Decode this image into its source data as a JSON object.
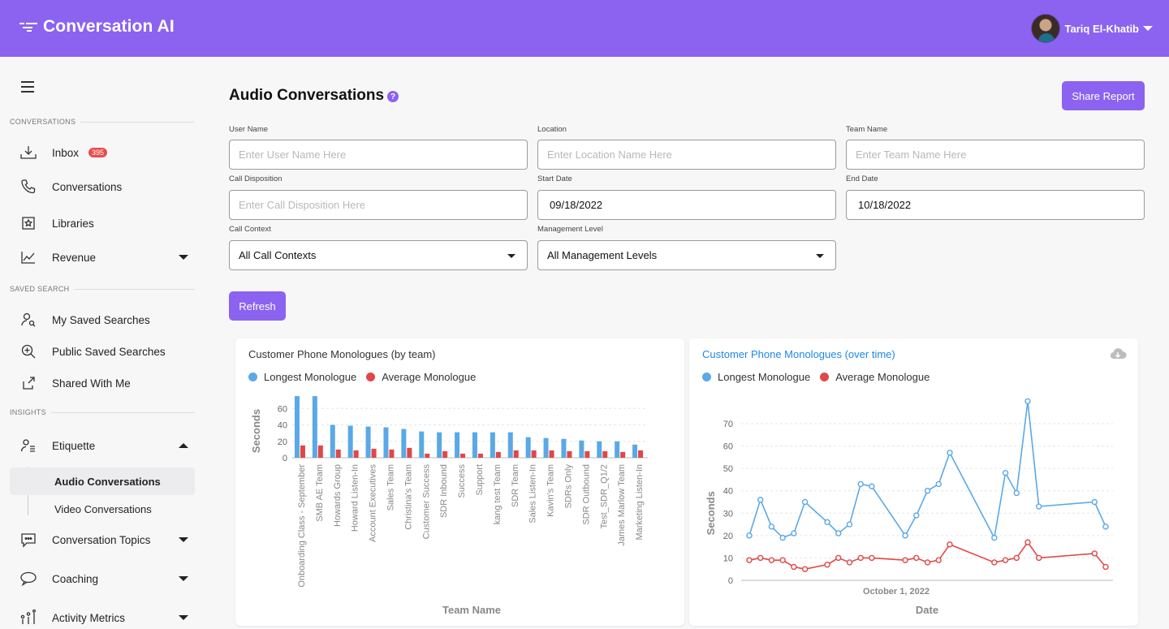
{
  "header": {
    "app_name": "Conversation AI",
    "user_name": "Tariq El-Khatib",
    "brand_color": "#8b63f0"
  },
  "sidebar": {
    "sections": {
      "conversations": "CONVERSATIONS",
      "saved_search": "SAVED SEARCH",
      "insights": "INSIGHTS"
    },
    "items": {
      "inbox": {
        "label": "Inbox",
        "badge": "395",
        "icon": "inbox-download-icon"
      },
      "conversations": {
        "label": "Conversations",
        "icon": "phone-icon"
      },
      "libraries": {
        "label": "Libraries",
        "icon": "library-icon"
      },
      "revenue": {
        "label": "Revenue",
        "icon": "line-chart-icon"
      },
      "my_saved": {
        "label": "My Saved Searches",
        "icon": "user-search-icon"
      },
      "public_saved": {
        "label": "Public Saved Searches",
        "icon": "zoom-in-icon"
      },
      "shared": {
        "label": "Shared With Me",
        "icon": "share-icon"
      },
      "etiquette": {
        "label": "Etiquette",
        "icon": "person-list-icon"
      },
      "audio": {
        "label": "Audio Conversations"
      },
      "video": {
        "label": "Video Conversations"
      },
      "topics": {
        "label": "Conversation Topics",
        "icon": "chat-bubble-icon"
      },
      "coaching": {
        "label": "Coaching",
        "icon": "speech-bubble-icon"
      },
      "activity": {
        "label": "Activity Metrics",
        "icon": "sliders-icon"
      }
    }
  },
  "main": {
    "title": "Audio Conversations",
    "share_button": "Share Report",
    "refresh_button": "Refresh",
    "filters": {
      "user_name": {
        "label": "User Name",
        "placeholder": "Enter User Name Here"
      },
      "location": {
        "label": "Location",
        "placeholder": "Enter Location Name Here"
      },
      "team_name": {
        "label": "Team Name",
        "placeholder": "Enter Team Name Here"
      },
      "call_disposition": {
        "label": "Call Disposition",
        "placeholder": "Enter Call Disposition Here"
      },
      "start_date": {
        "label": "Start Date",
        "value": "09/18/2022"
      },
      "end_date": {
        "label": "End Date",
        "value": "10/18/2022"
      },
      "call_context": {
        "label": "Call Context",
        "value": "All Call Contexts"
      },
      "management_level": {
        "label": "Management Level",
        "value": "All Management Levels"
      }
    }
  },
  "chart_data": [
    {
      "type": "bar",
      "title": "Customer Phone Monologues (by team)",
      "xlabel": "Team Name",
      "ylabel": "Seconds",
      "ylim": [
        0,
        80
      ],
      "yticks": [
        0,
        20,
        40,
        60
      ],
      "legend_position": "top-left",
      "categories": [
        "Onboarding Class - September",
        "SMB AE Team",
        "Howards Group",
        "Howard Listen-In",
        "Account Executives",
        "Sales Team",
        "Christina's Team",
        "Customer Success",
        "SDR Inbound",
        "Success",
        "Support",
        "kang test Team",
        "SDR Team",
        "Sales Listen-In",
        "Kavin's Team",
        "SDRs Only",
        "SDR Outbound",
        "Test_SDR_Q1/2",
        "James Marlow Team",
        "Marketing Listen-In"
      ],
      "series": [
        {
          "name": "Longest Monologue",
          "color": "#5aa9e6",
          "values": [
            75,
            75,
            40,
            39,
            38,
            37,
            35,
            32,
            31,
            31,
            31,
            31,
            31,
            25,
            24,
            23,
            21,
            20,
            20,
            16
          ]
        },
        {
          "name": "Average Monologue",
          "color": "#e04848",
          "values": [
            15,
            15,
            10,
            9,
            11,
            10,
            12,
            5,
            8,
            5,
            5,
            7,
            9,
            9,
            9,
            8,
            8,
            8,
            7,
            9
          ]
        }
      ]
    },
    {
      "type": "line",
      "title": "Customer Phone Monologues (over time)",
      "xlabel": "Date",
      "ylabel": "Seconds",
      "ylim": [
        0,
        80
      ],
      "yticks": [
        0,
        10,
        20,
        30,
        40,
        50,
        60,
        70
      ],
      "x_tick_label": "October 1, 2022",
      "legend_position": "top-left",
      "x": [
        0,
        1,
        2,
        3,
        4,
        5,
        7,
        8,
        9,
        10,
        11,
        14,
        15,
        16,
        17,
        18,
        22,
        23,
        24,
        25,
        26,
        31,
        32
      ],
      "series": [
        {
          "name": "Longest Monologue",
          "color": "#5aa9e6",
          "values": [
            20,
            36,
            24,
            19,
            21,
            35,
            26,
            21,
            25,
            43,
            42,
            20,
            29,
            40,
            43,
            57,
            19,
            48,
            39,
            80,
            33,
            35,
            24
          ]
        },
        {
          "name": "Average Monologue",
          "color": "#e04848",
          "values": [
            9,
            10,
            9,
            9,
            6,
            5,
            7,
            10,
            8,
            10,
            10,
            9,
            10,
            8,
            9,
            16,
            8,
            9,
            10,
            17,
            10,
            12,
            6
          ]
        }
      ]
    }
  ]
}
